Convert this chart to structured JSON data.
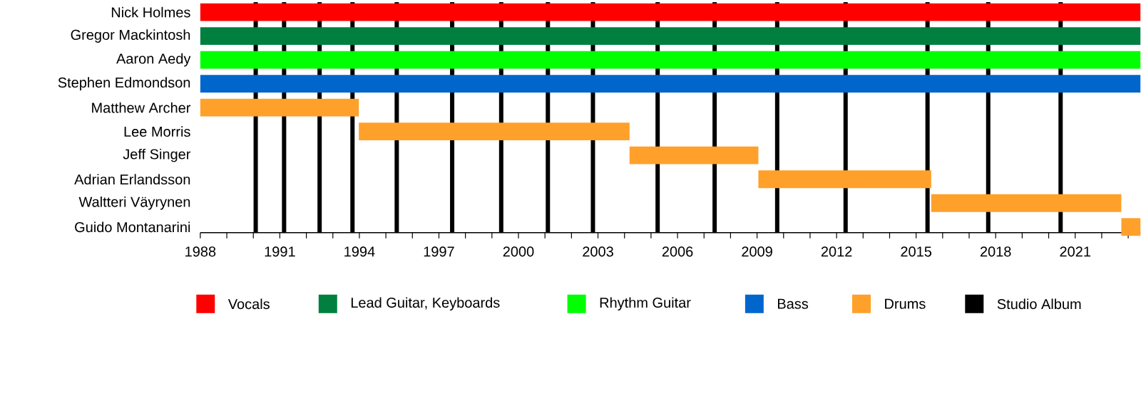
{
  "chart_data": {
    "type": "bar",
    "orientation": "horizontal",
    "legend": "bottom",
    "grid": false,
    "categories": [
      "Nick Holmes",
      "Gregor Mackintosh",
      "Aaron Aedy",
      "Stephen Edmondson",
      "Matthew Archer",
      "Lee Morris",
      "Jeff Singer",
      "Adrian Erlandsson",
      "Waltteri Väyrynen",
      "Guido Montanarini"
    ],
    "series": [
      {
        "name": "Vocals",
        "color": "#ff0000",
        "base": [
          1988,
          null,
          null,
          null,
          null,
          null,
          null,
          null,
          null,
          null
        ],
        "values": [
          35.46,
          null,
          null,
          null,
          null,
          null,
          null,
          null,
          null,
          null
        ]
      },
      {
        "name": "Lead Guitar, Keyboards",
        "color": "#007f3f",
        "base": [
          null,
          1988,
          null,
          null,
          null,
          null,
          null,
          null,
          null,
          null
        ],
        "values": [
          null,
          35.46,
          null,
          null,
          null,
          null,
          null,
          null,
          null,
          null
        ]
      },
      {
        "name": "Rhythm Guitar",
        "color": "#00ff00",
        "base": [
          null,
          null,
          1988,
          null,
          null,
          null,
          null,
          null,
          null,
          null
        ],
        "values": [
          null,
          null,
          35.46,
          null,
          null,
          null,
          null,
          null,
          null,
          null
        ]
      },
      {
        "name": "Bass",
        "color": "#0066cc",
        "base": [
          null,
          null,
          null,
          1988,
          null,
          null,
          null,
          null,
          null,
          null
        ],
        "values": [
          null,
          null,
          null,
          35.46,
          null,
          null,
          null,
          null,
          null,
          null
        ]
      },
      {
        "name": "Drums",
        "color": "#ffa02a",
        "base": [
          null,
          null,
          null,
          null,
          1988,
          1993.98,
          2004.19,
          2009.05,
          2015.57,
          2022.74
        ],
        "values": [
          null,
          null,
          null,
          null,
          5.98,
          10.21,
          4.86,
          6.52,
          7.17,
          0.72
        ]
      }
    ],
    "xlim": [
      1988,
      2023.46
    ],
    "xticks": [
      1988,
      {
        "value": 1989,
        "label": null
      },
      {
        "value": 1990,
        "label": null
      },
      1991,
      {
        "value": 1992,
        "label": null
      },
      {
        "value": 1993,
        "label": null
      },
      1994,
      {
        "value": 1995,
        "label": null
      },
      {
        "value": 1996,
        "label": null
      },
      1997,
      {
        "value": 1998,
        "label": null
      },
      {
        "value": 1999,
        "label": null
      },
      2000,
      {
        "value": 2001,
        "label": null
      },
      {
        "value": 2002,
        "label": null
      },
      2003,
      {
        "value": 2004,
        "label": null
      },
      {
        "value": 2005,
        "label": null
      },
      2006,
      {
        "value": 2007,
        "label": null
      },
      {
        "value": 2008,
        "label": null
      },
      2009,
      {
        "value": 2010,
        "label": null
      },
      {
        "value": 2011,
        "label": null
      },
      2012,
      {
        "value": 2013,
        "label": null
      },
      {
        "value": 2014,
        "label": null
      },
      2015,
      {
        "value": 2016,
        "label": null
      },
      {
        "value": 2017,
        "label": null
      },
      2018,
      {
        "value": 2019,
        "label": null
      },
      {
        "value": 2020,
        "label": null
      },
      2021,
      {
        "value": 2022,
        "label": null
      },
      {
        "value": 2023,
        "label": null
      }
    ],
    "ref_lines": [
      {
        "axis": "x",
        "value": 1990.09,
        "color": "#000000",
        "label": "Studio Album"
      },
      {
        "axis": "x",
        "value": 1991.16,
        "color": "#000000"
      },
      {
        "axis": "x",
        "value": 1992.5,
        "color": "#000000"
      },
      {
        "axis": "x",
        "value": 1993.74,
        "color": "#000000"
      },
      {
        "axis": "x",
        "value": 1995.41,
        "color": "#000000"
      },
      {
        "axis": "x",
        "value": 1997.5,
        "color": "#000000"
      },
      {
        "axis": "x",
        "value": 1999.35,
        "color": "#000000"
      },
      {
        "axis": "x",
        "value": 2001.11,
        "color": "#000000"
      },
      {
        "axis": "x",
        "value": 2002.81,
        "color": "#000000"
      },
      {
        "axis": "x",
        "value": 2005.25,
        "color": "#000000"
      },
      {
        "axis": "x",
        "value": 2007.4,
        "color": "#000000"
      },
      {
        "axis": "x",
        "value": 2009.76,
        "color": "#000000"
      },
      {
        "axis": "x",
        "value": 2012.34,
        "color": "#000000"
      },
      {
        "axis": "x",
        "value": 2015.43,
        "color": "#000000"
      },
      {
        "axis": "x",
        "value": 2017.72,
        "color": "#000000"
      },
      {
        "axis": "x",
        "value": 2020.45,
        "color": "#000000"
      }
    ]
  }
}
